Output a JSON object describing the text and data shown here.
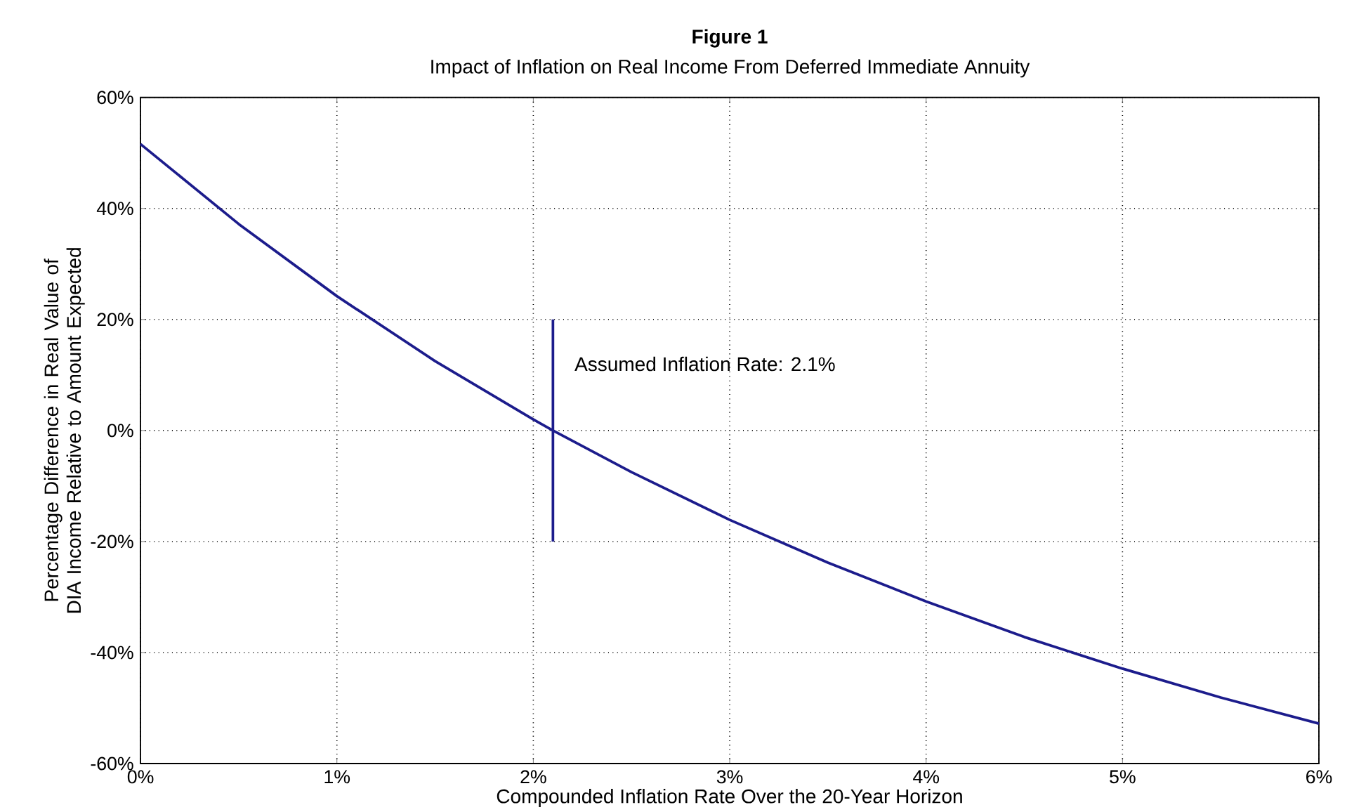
{
  "chart_data": {
    "type": "line",
    "title": "Figure 1",
    "subtitle": "Impact of Inflation on Real Income From Deferred Immediate Annuity",
    "xlabel": "Compounded Inflation Rate Over the 20-Year Horizon",
    "ylabel": "Percentage Difference in Real Value of DIA Income Relative to Amount Expected",
    "xlim": [
      0,
      6
    ],
    "ylim": [
      -60,
      60
    ],
    "xticks": [
      {
        "value": 0,
        "label": "0%"
      },
      {
        "value": 1,
        "label": "1%"
      },
      {
        "value": 2,
        "label": "2%"
      },
      {
        "value": 3,
        "label": "3%"
      },
      {
        "value": 4,
        "label": "4%"
      },
      {
        "value": 5,
        "label": "5%"
      },
      {
        "value": 6,
        "label": "6%"
      }
    ],
    "yticks": [
      {
        "value": -60,
        "label": "-60%"
      },
      {
        "value": -40,
        "label": "-40%"
      },
      {
        "value": -20,
        "label": "-20%"
      },
      {
        "value": 0,
        "label": "0%"
      },
      {
        "value": 20,
        "label": "20%"
      },
      {
        "value": 40,
        "label": "40%"
      },
      {
        "value": 60,
        "label": "60%"
      }
    ],
    "grid": true,
    "line_style": "solid",
    "series": [
      {
        "color": "#1c1c8c",
        "x": [
          0,
          0.5,
          1,
          1.5,
          2,
          2.1,
          2.5,
          3,
          3.5,
          4,
          4.5,
          5,
          5.5,
          6
        ],
        "values": [
          51.6,
          37.2,
          24.2,
          12.5,
          2.0,
          0,
          -7.5,
          -16.1,
          -23.8,
          -30.8,
          -37.2,
          -42.9,
          -48.1,
          -52.8
        ]
      },
      {
        "color": "#1c1c8c",
        "x": [
          2.1,
          2.1
        ],
        "values": [
          -20,
          20
        ]
      }
    ],
    "annotations": [
      {
        "text": "Assumed Inflation Rate: 2.1%",
        "x": 2.1,
        "y": 12
      }
    ]
  }
}
